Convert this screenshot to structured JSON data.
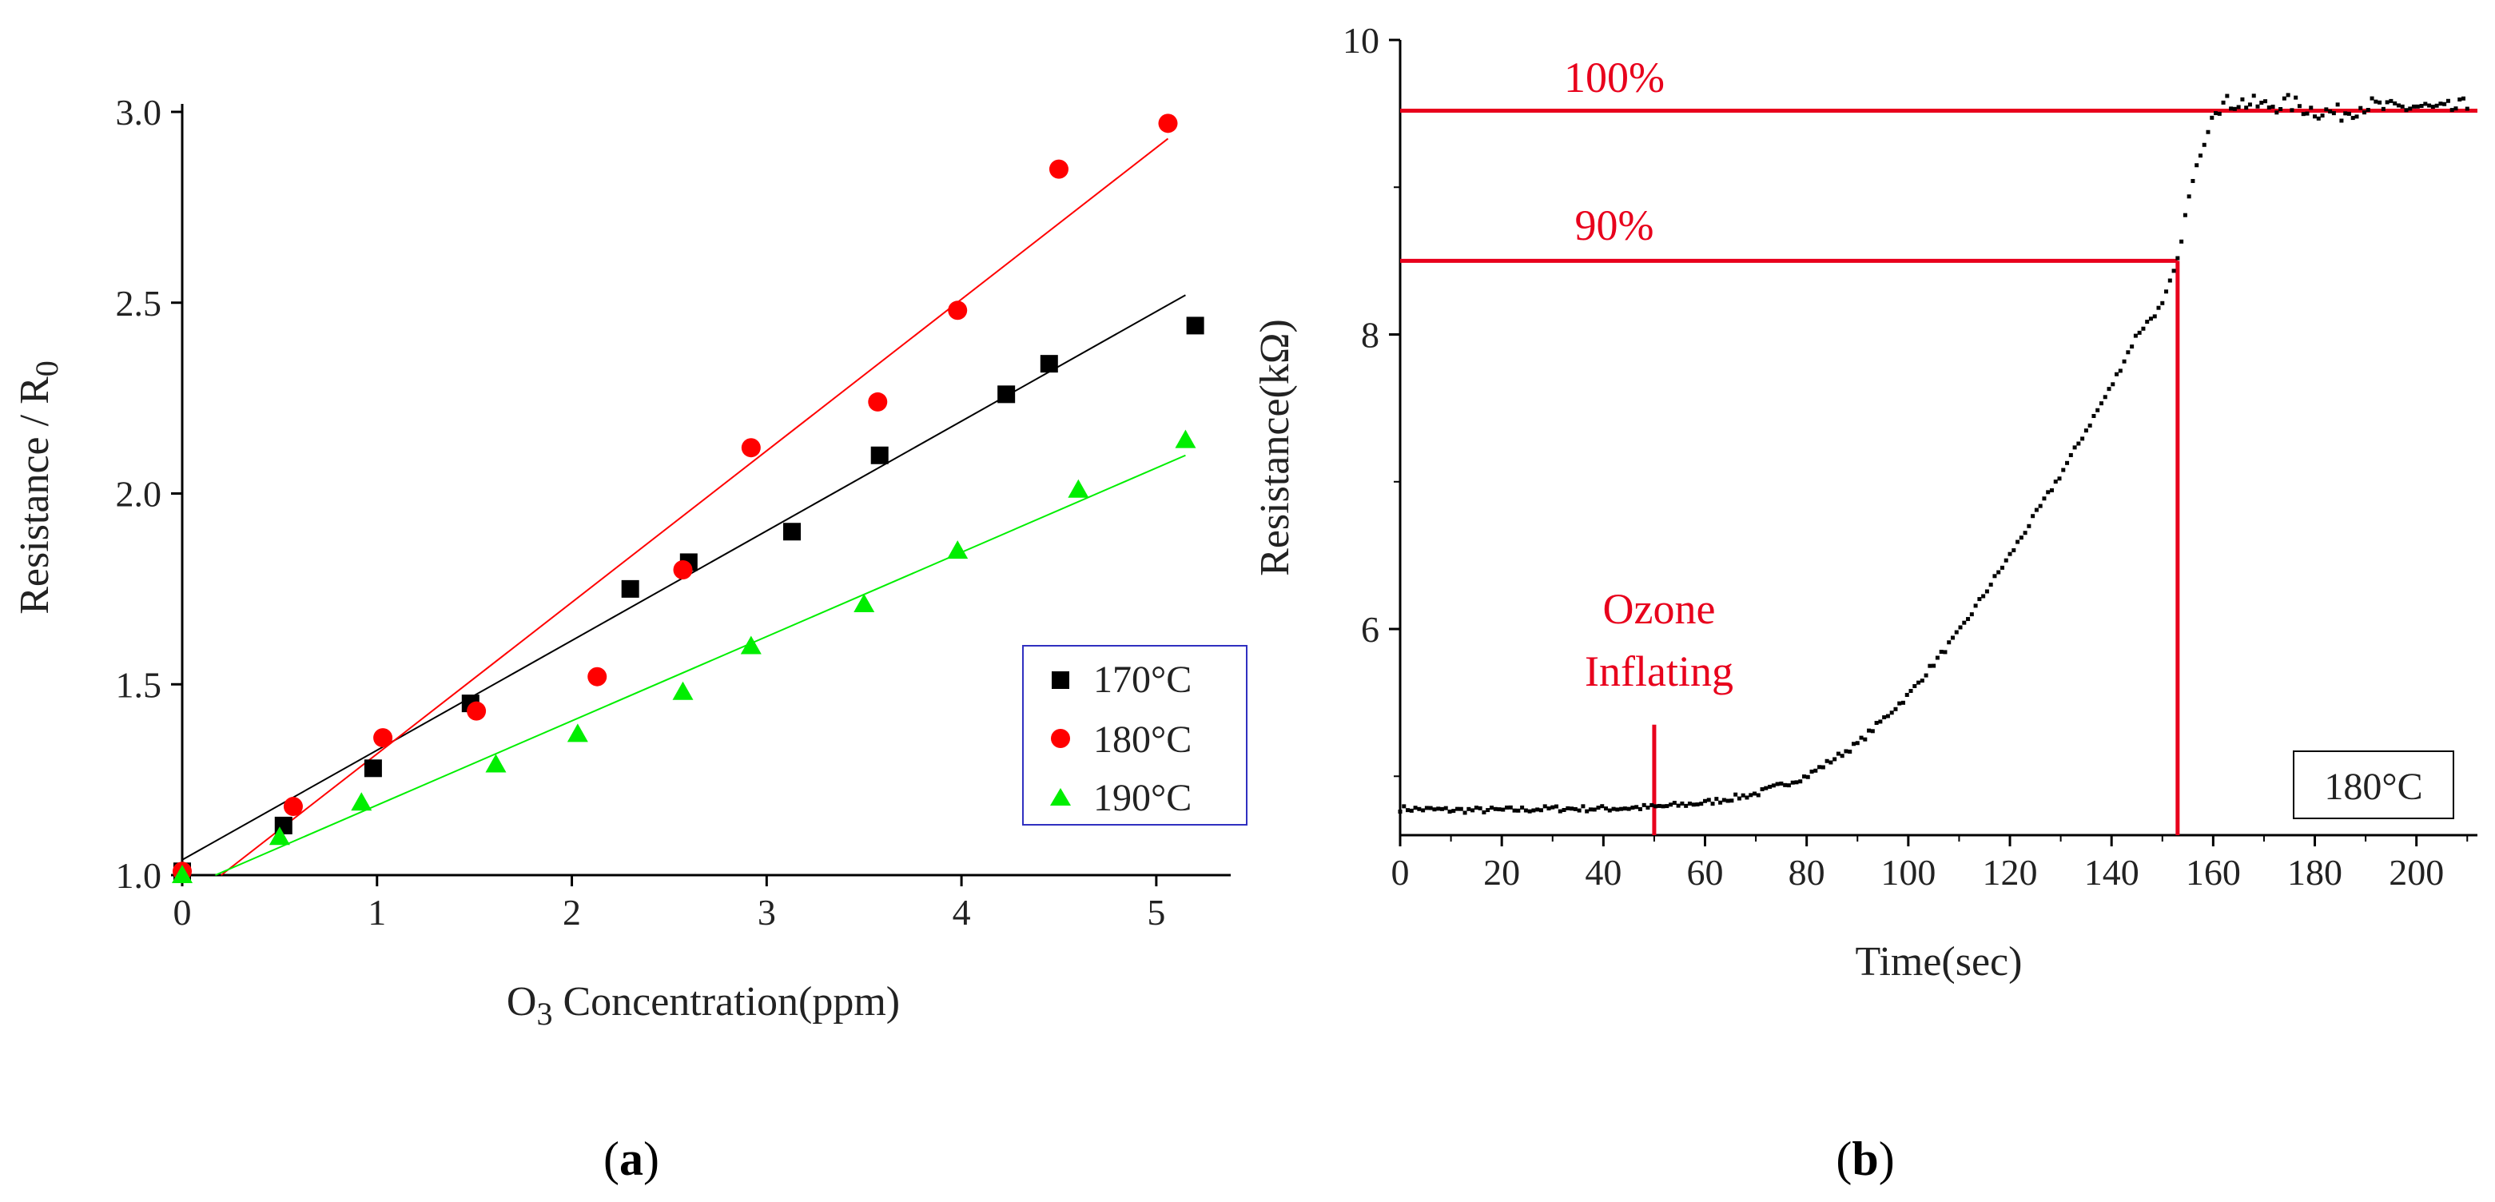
{
  "chart_data": [
    {
      "id": "a",
      "type": "scatter",
      "panel_label_open": "(",
      "panel_label": "a",
      "panel_label_close": ")",
      "xlabel_prefix": "O",
      "xlabel_sub": "3",
      "xlabel_rest": " Concentration(ppm)",
      "ylabel_main": "Resistance / R",
      "ylabel_sub": "0",
      "xlim": [
        0,
        5.3
      ],
      "ylim": [
        1.0,
        3.0
      ],
      "xticks": [
        0,
        1,
        2,
        3,
        4,
        5
      ],
      "yticks": [
        "1.0",
        "1.5",
        "2.0",
        "2.5",
        "3.0"
      ],
      "legend_position": "lower-right",
      "series": [
        {
          "name": "170°C",
          "marker": "square",
          "color": "#000000",
          "x": [
            0.0,
            0.52,
            0.98,
            1.48,
            2.3,
            2.6,
            3.13,
            3.58,
            4.23,
            4.45,
            5.2
          ],
          "y": [
            1.01,
            1.13,
            1.28,
            1.45,
            1.75,
            1.82,
            1.9,
            2.1,
            2.26,
            2.34,
            2.44
          ],
          "fit": {
            "x": [
              0.0,
              5.15
            ],
            "y": [
              1.04,
              2.52
            ]
          }
        },
        {
          "name": "180°C",
          "marker": "circle",
          "color": "#ff0000",
          "x": [
            0.0,
            0.57,
            1.03,
            1.51,
            2.13,
            2.57,
            2.92,
            3.57,
            3.98,
            4.5,
            5.06
          ],
          "y": [
            1.01,
            1.18,
            1.36,
            1.43,
            1.52,
            1.8,
            2.12,
            2.24,
            2.48,
            2.85,
            2.97
          ],
          "fit": {
            "x": [
              0.2,
              5.06
            ],
            "y": [
              1.0,
              2.93
            ]
          }
        },
        {
          "name": "190°C",
          "marker": "triangle",
          "color": "#00ee00",
          "x": [
            0.0,
            0.5,
            0.92,
            1.61,
            2.03,
            2.57,
            2.92,
            3.5,
            3.98,
            4.6,
            5.15
          ],
          "y": [
            1.0,
            1.1,
            1.19,
            1.29,
            1.37,
            1.48,
            1.6,
            1.71,
            1.85,
            2.01,
            2.14
          ],
          "fit": {
            "x": [
              0.17,
              5.15
            ],
            "y": [
              1.0,
              2.1
            ]
          }
        }
      ]
    },
    {
      "id": "b",
      "type": "line",
      "panel_label_open": "(",
      "panel_label": "b",
      "panel_label_close": ")",
      "xlabel": "Time(sec)",
      "ylabel": "Resistance(kΩ)",
      "xlim": [
        0,
        212
      ],
      "ylim": [
        4.6,
        10.0
      ],
      "xticks": [
        0,
        20,
        40,
        60,
        80,
        100,
        120,
        140,
        160,
        180,
        200
      ],
      "yticks": [
        6,
        8,
        10
      ],
      "inset_label": "180°C",
      "annotations": {
        "level_100": {
          "label": "100%",
          "y": 9.52
        },
        "level_90": {
          "label": "90%",
          "y": 8.5,
          "x_end": 153
        },
        "ozone_line1": "Ozone",
        "ozone_line2": "Inflating",
        "ozone_x": 50,
        "ozone_y_top": 5.35,
        "response_x": 153
      },
      "series": [
        {
          "name": "resistance",
          "color": "#000000",
          "x": [
            0,
            10,
            20,
            30,
            40,
            50,
            60,
            70,
            80,
            90,
            100,
            110,
            120,
            130,
            140,
            145,
            150,
            153,
            155,
            158,
            160,
            165,
            170,
            175,
            180,
            185,
            190,
            195,
            200,
            205,
            210
          ],
          "y": [
            4.78,
            4.77,
            4.77,
            4.78,
            4.78,
            4.79,
            4.82,
            4.88,
            5.0,
            5.22,
            5.55,
            5.98,
            6.5,
            7.05,
            7.65,
            8.0,
            8.2,
            8.5,
            8.9,
            9.3,
            9.55,
            9.58,
            9.55,
            9.57,
            9.52,
            9.5,
            9.56,
            9.53,
            9.55,
            9.52,
            9.55
          ]
        }
      ]
    }
  ]
}
